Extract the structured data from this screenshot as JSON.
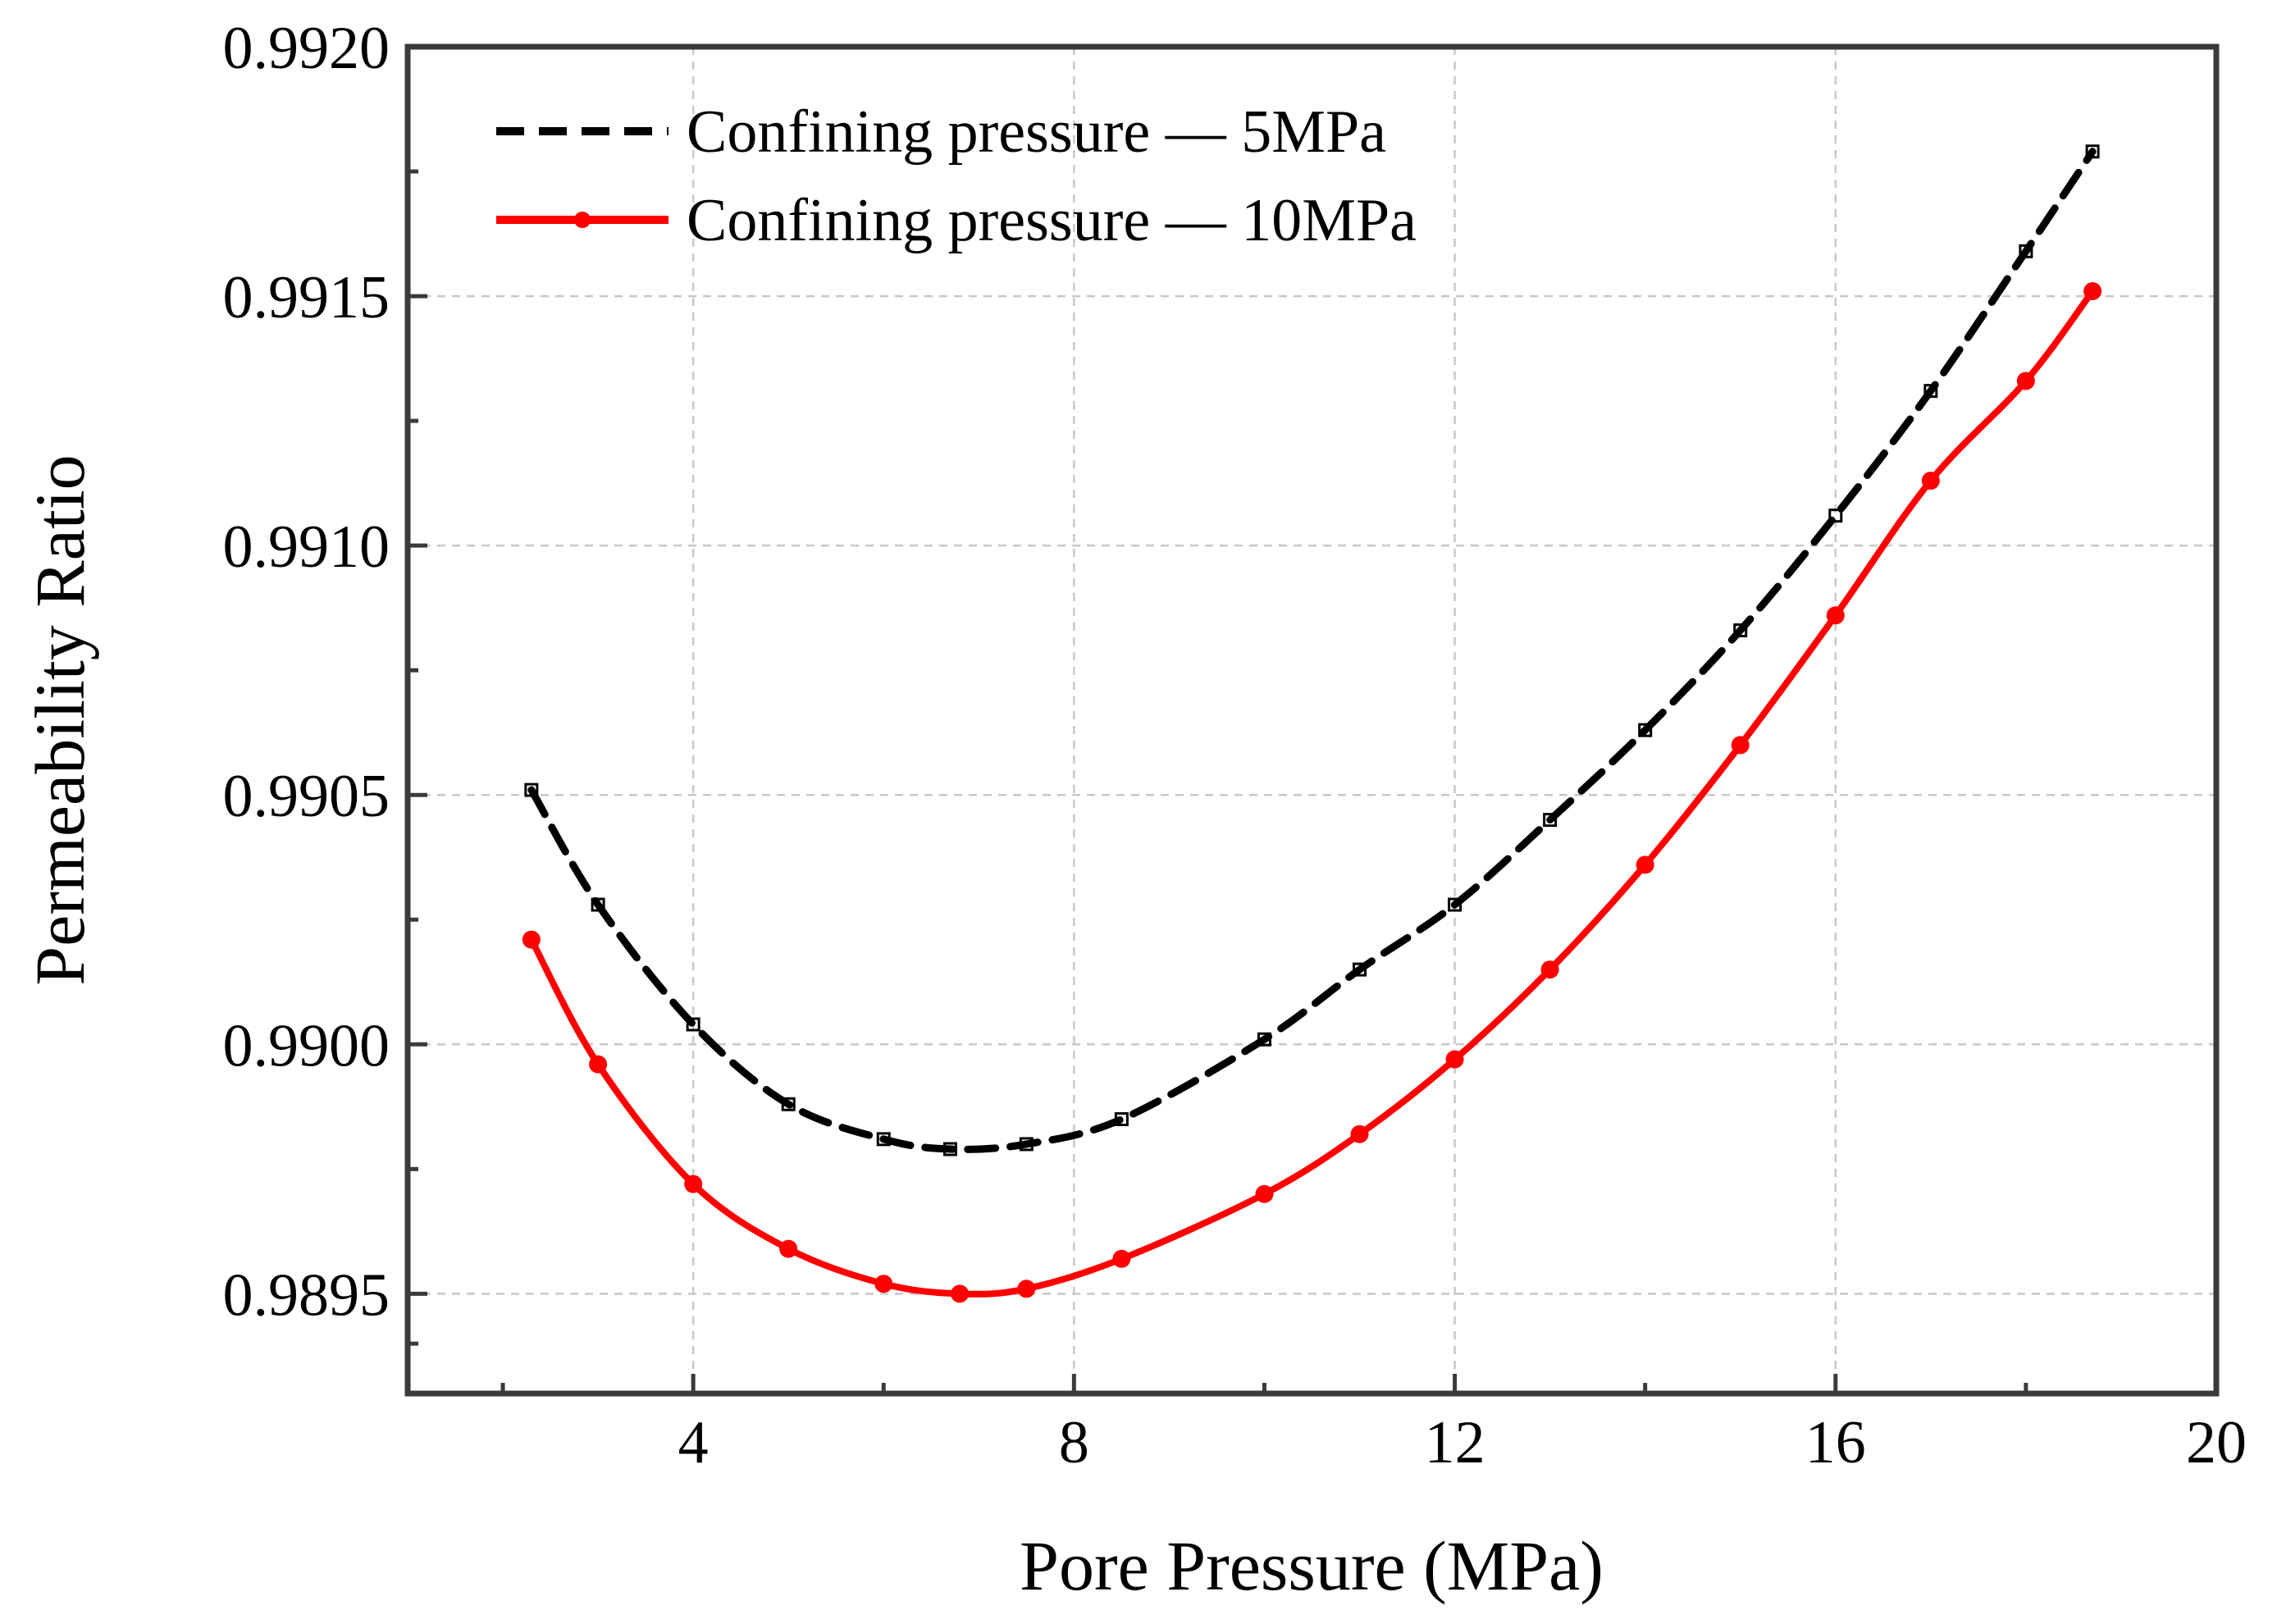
{
  "chart_data": {
    "type": "line",
    "xlabel": "Pore Pressure (MPa)",
    "ylabel": "Permeability Ratio",
    "xlim": [
      1,
      20
    ],
    "ylim": [
      0.9893,
      0.992
    ],
    "x_ticks": [
      4,
      8,
      12,
      16,
      20
    ],
    "x_tick_labels": [
      "4",
      "8",
      "12",
      "16",
      "20"
    ],
    "y_ticks": [
      0.9895,
      0.99,
      0.9905,
      0.991,
      0.9915,
      0.992
    ],
    "y_tick_labels": [
      "0.9895",
      "0.9900",
      "0.9905",
      "0.9910",
      "0.9915",
      "0.9920"
    ],
    "grid": true,
    "legend_position": "top-left",
    "series": [
      {
        "name": "Confining pressure — 5MPa",
        "color": "#000000",
        "style": "dashed-square-markers",
        "x": [
          2.3,
          3.0,
          4.0,
          5.0,
          6.0,
          6.7,
          7.5,
          8.5,
          10.0,
          11.0,
          12.0,
          13.0,
          14.0,
          15.0,
          16.0,
          17.0,
          18.0,
          18.7
        ],
        "y": [
          0.99051,
          0.99028,
          0.99004,
          0.98988,
          0.98981,
          0.98979,
          0.9898,
          0.98985,
          0.99001,
          0.99015,
          0.99028,
          0.99045,
          0.99063,
          0.99083,
          0.99106,
          0.99131,
          0.99159,
          0.99179
        ]
      },
      {
        "name": "Confining pressure — 10MPa",
        "color": "#ff0000",
        "style": "solid-circle-markers",
        "x": [
          2.3,
          3.0,
          4.0,
          5.0,
          6.0,
          6.8,
          7.5,
          8.5,
          10.0,
          11.0,
          12.0,
          13.0,
          14.0,
          15.0,
          16.0,
          17.0,
          18.0,
          18.7
        ],
        "y": [
          0.99021,
          0.98996,
          0.98972,
          0.98959,
          0.98952,
          0.9895,
          0.98951,
          0.98957,
          0.9897,
          0.98982,
          0.98997,
          0.99015,
          0.99036,
          0.9906,
          0.99086,
          0.99113,
          0.99133,
          0.99151
        ]
      }
    ]
  }
}
